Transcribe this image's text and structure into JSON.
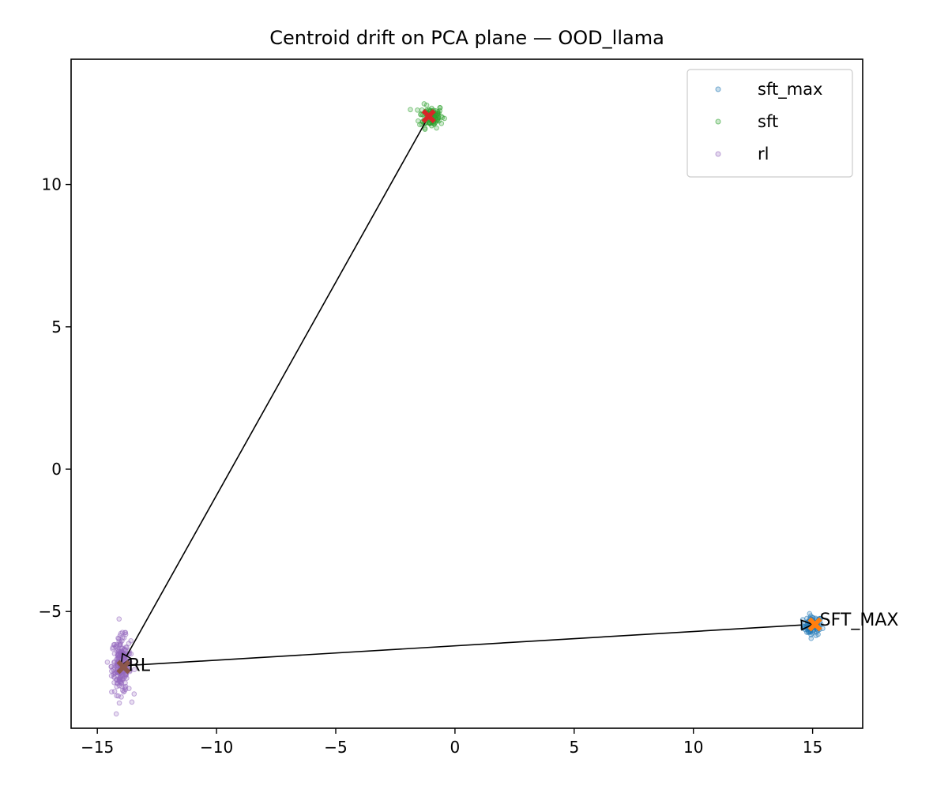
{
  "chart_data": {
    "type": "scatter",
    "title": "Centroid drift on PCA plane — OOD_llama",
    "xlabel": "",
    "ylabel": "",
    "xlim": [
      -16.1,
      17.1
    ],
    "ylim": [
      -9.1,
      14.4
    ],
    "x_ticks": [
      -15,
      -10,
      -5,
      0,
      5,
      10,
      15
    ],
    "x_tick_labels": [
      "−15",
      "−10",
      "−5",
      "0",
      "5",
      "10",
      "15"
    ],
    "y_ticks": [
      -5,
      0,
      5,
      10
    ],
    "y_tick_labels": [
      "−5",
      "0",
      "5",
      "10"
    ],
    "grid": false,
    "legend_position": "top-right",
    "series": [
      {
        "name": "sft_max",
        "color": "#1f77b4",
        "center": [
          15.0,
          -5.5
        ],
        "spread": [
          0.2,
          0.17
        ],
        "count": 90
      },
      {
        "name": "sft",
        "color": "#2ca02c",
        "center": [
          -1.0,
          12.4
        ],
        "spread": [
          0.25,
          0.2
        ],
        "count": 100
      },
      {
        "name": "rl",
        "color": "#9467bd",
        "center": [
          -14.0,
          -6.9
        ],
        "spread": [
          0.2,
          0.5
        ],
        "count": 220
      }
    ],
    "centroids": [
      {
        "series": "sft_max",
        "x": 15.1,
        "y": -5.45,
        "color": "#ff7f0e",
        "marker": "X"
      },
      {
        "series": "sft",
        "x": -1.1,
        "y": 12.4,
        "color": "#d62728",
        "marker": "X"
      },
      {
        "series": "rl",
        "x": -13.9,
        "y": -6.95,
        "color": "#8c564b",
        "marker": "X"
      }
    ],
    "arrows": [
      {
        "from": [
          -1.1,
          12.4
        ],
        "to": [
          -14.0,
          -6.9
        ]
      },
      {
        "from": [
          -13.8,
          -6.9
        ],
        "to": [
          15.0,
          -5.45
        ]
      }
    ],
    "annotations": [
      {
        "text": "SFT_MAX",
        "x": 15.3,
        "y": -5.3
      },
      {
        "text": "RL",
        "x": -13.7,
        "y": -6.9
      }
    ]
  }
}
